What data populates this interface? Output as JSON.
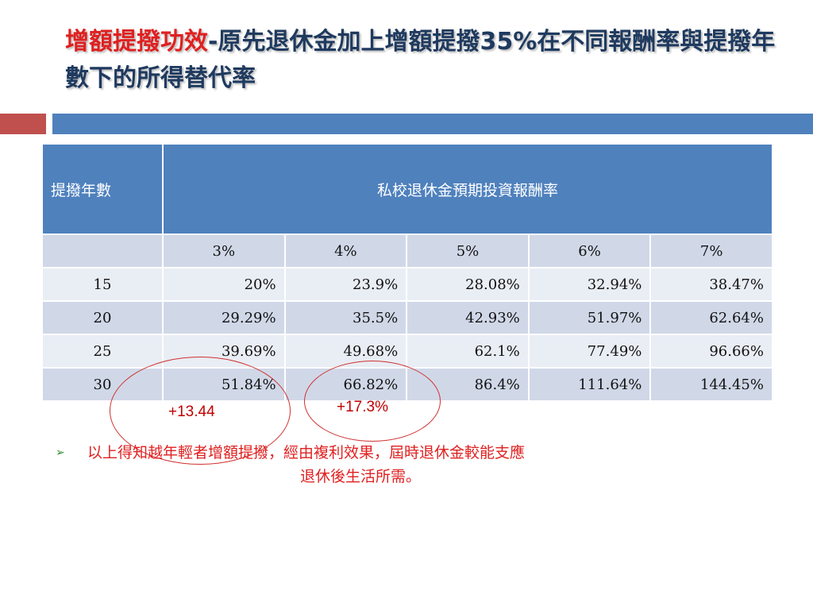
{
  "title": {
    "accent": "增額提撥功效",
    "rest": "-原先退休金加上增額提撥35%在不同報酬率與提撥年數下的所得替代率"
  },
  "table": {
    "header_years": "提撥年數",
    "header_rates": "私校退休金預期投資報酬率",
    "rates": [
      "3%",
      "4%",
      "5%",
      "6%",
      "7%"
    ],
    "rows": [
      {
        "year": "15",
        "values": [
          "20%",
          "23.9%",
          "28.08%",
          "32.94%",
          "38.47%"
        ]
      },
      {
        "year": "20",
        "values": [
          "29.29%",
          "35.5%",
          "42.93%",
          "51.97%",
          "62.64%"
        ]
      },
      {
        "year": "25",
        "values": [
          "39.69%",
          "49.68%",
          "62.1%",
          "77.49%",
          "96.66%"
        ]
      },
      {
        "year": "30",
        "values": [
          "51.84%",
          "66.82%",
          "86.4%",
          "111.64%",
          "144.45%"
        ]
      }
    ]
  },
  "annotations": {
    "delta_3pct": "+13.44",
    "delta_4pct": "+17.3%"
  },
  "bullet": {
    "arrow": "➢",
    "line1": "以上得知越年輕者增額提撥，經由複利效果，屆時退休金較能支應",
    "line2": "退休後生活所需。"
  },
  "colors": {
    "header_blue": "#4f81bd",
    "accent_red": "#c0504d",
    "row_odd": "#d0d8e8",
    "row_even": "#e9edf4",
    "title_red": "#e02020",
    "title_navy": "#1f3a5f"
  }
}
